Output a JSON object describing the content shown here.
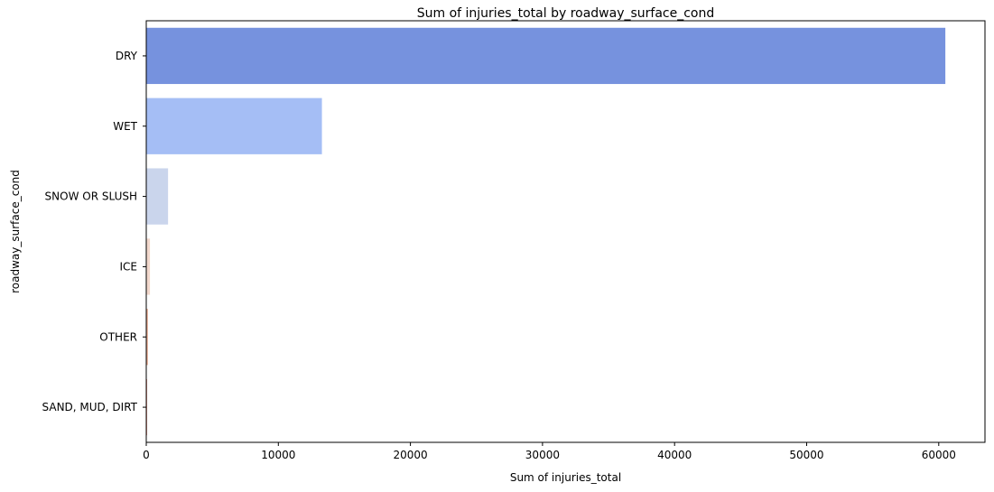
{
  "chart_data": {
    "type": "bar",
    "orientation": "horizontal",
    "title": "Sum of injuries_total by roadway_surface_cond",
    "xlabel": "Sum of injuries_total",
    "ylabel": "roadway_surface_cond",
    "categories": [
      "DRY",
      "WET",
      "SNOW OR SLUSH",
      "ICE",
      "OTHER",
      "SAND, MUD, DIRT"
    ],
    "values": [
      60500,
      13300,
      1650,
      280,
      120,
      30
    ],
    "colors": [
      "#7692de",
      "#a5bef5",
      "#cad5ec",
      "#f2d8cc",
      "#e6a88c",
      "#d45a47"
    ],
    "xlim": [
      0,
      63500
    ],
    "xticks": [
      0,
      10000,
      20000,
      30000,
      40000,
      50000,
      60000
    ],
    "xtick_labels": [
      "0",
      "10000",
      "20000",
      "30000",
      "40000",
      "50000",
      "60000"
    ],
    "grid": false,
    "legend": "none"
  }
}
